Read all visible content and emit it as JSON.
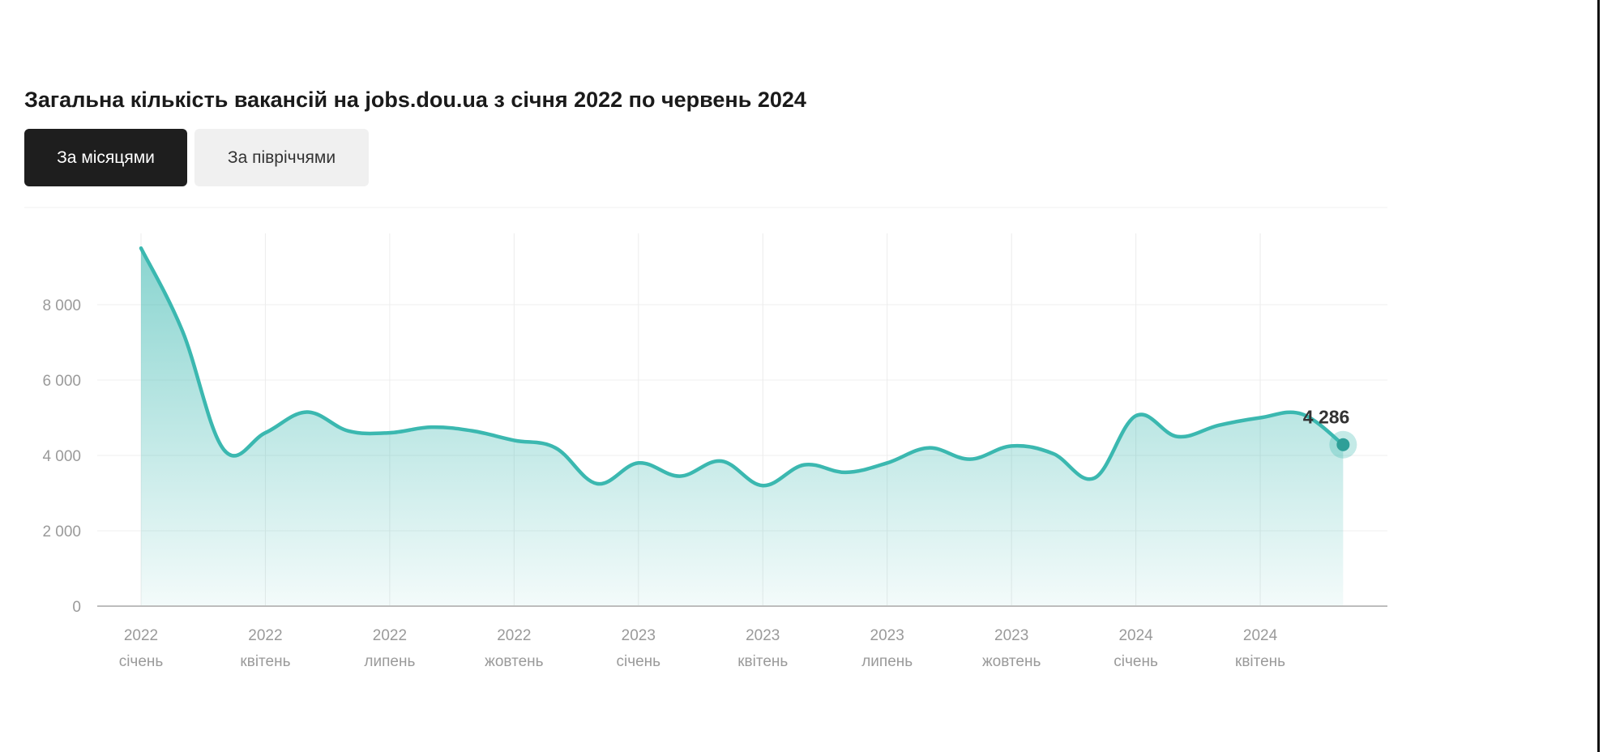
{
  "title": "Загальна кількість вакансій на jobs.dou.ua з січня 2022 по червень 2024",
  "tabs": [
    {
      "label": "За місяцями",
      "active": true
    },
    {
      "label": "За півріччями",
      "active": false
    }
  ],
  "chart_data": {
    "type": "area",
    "title": "Загальна кількість вакансій на jobs.dou.ua з січня 2022 по червень 2024",
    "xlabel": "",
    "ylabel": "",
    "ylim": [
      0,
      9800
    ],
    "yticks": [
      0,
      2000,
      4000,
      6000,
      8000
    ],
    "ytick_labels": [
      "0",
      "2 000",
      "4 000",
      "6 000",
      "8 000"
    ],
    "grid": true,
    "x_ticks": [
      {
        "index": 0,
        "year": "2022",
        "month": "січень"
      },
      {
        "index": 3,
        "year": "2022",
        "month": "квітень"
      },
      {
        "index": 6,
        "year": "2022",
        "month": "липень"
      },
      {
        "index": 9,
        "year": "2022",
        "month": "жовтень"
      },
      {
        "index": 12,
        "year": "2023",
        "month": "січень"
      },
      {
        "index": 15,
        "year": "2023",
        "month": "квітень"
      },
      {
        "index": 18,
        "year": "2023",
        "month": "липень"
      },
      {
        "index": 21,
        "year": "2023",
        "month": "жовтень"
      },
      {
        "index": 24,
        "year": "2024",
        "month": "січень"
      },
      {
        "index": 27,
        "year": "2024",
        "month": "квітень"
      }
    ],
    "x": [
      "2022-01",
      "2022-02",
      "2022-03",
      "2022-04",
      "2022-05",
      "2022-06",
      "2022-07",
      "2022-08",
      "2022-09",
      "2022-10",
      "2022-11",
      "2022-12",
      "2023-01",
      "2023-02",
      "2023-03",
      "2023-04",
      "2023-05",
      "2023-06",
      "2023-07",
      "2023-08",
      "2023-09",
      "2023-10",
      "2023-11",
      "2023-12",
      "2024-01",
      "2024-02",
      "2024-03",
      "2024-04",
      "2024-05",
      "2024-06"
    ],
    "series": [
      {
        "values": [
          9500,
          7300,
          4150,
          4600,
          5150,
          4650,
          4600,
          4750,
          4650,
          4400,
          4200,
          3250,
          3800,
          3450,
          3850,
          3200,
          3750,
          3550,
          3800,
          4200,
          3900,
          4250,
          4050,
          3400,
          5050,
          4500,
          4800,
          5000,
          5100,
          4286
        ],
        "color": "#3bb8b0"
      }
    ],
    "annotation": {
      "index": 29,
      "label": "4 286"
    }
  }
}
